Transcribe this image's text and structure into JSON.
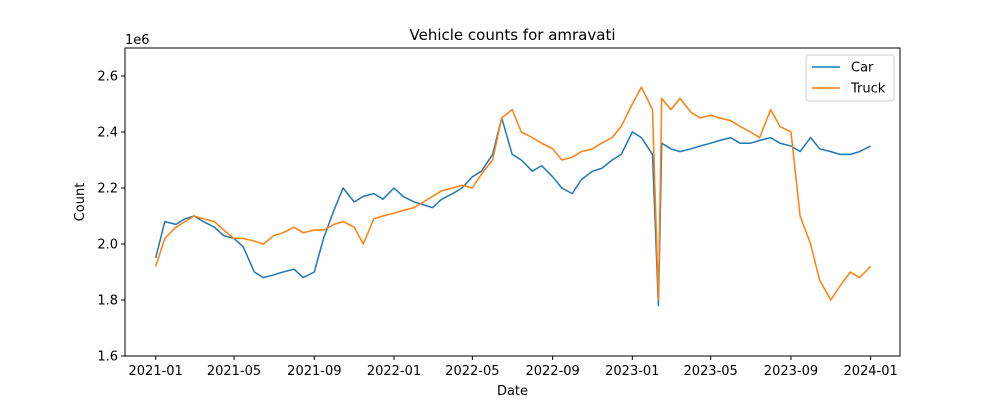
{
  "chart_data": {
    "type": "line",
    "title": "Vehicle counts for amravati",
    "xlabel": "Date",
    "ylabel": "Count",
    "y_offset_label": "1e6",
    "y_scale": 1000000,
    "xlim": [
      "2020-11-15",
      "2024-02-15"
    ],
    "ylim": [
      1600000,
      2700000
    ],
    "x_ticks": [
      "2021-01",
      "2021-05",
      "2021-09",
      "2022-01",
      "2022-05",
      "2022-09",
      "2023-01",
      "2023-05",
      "2023-09",
      "2024-01"
    ],
    "y_ticks": [
      1.6,
      1.8,
      2.0,
      2.2,
      2.4,
      2.6
    ],
    "grid": false,
    "legend_position": "top-right",
    "series": [
      {
        "name": "Car",
        "color": "#1f77b4",
        "x": [
          "2021-01-01",
          "2021-01-15",
          "2021-02-01",
          "2021-02-15",
          "2021-03-01",
          "2021-03-15",
          "2021-04-01",
          "2021-04-15",
          "2021-05-01",
          "2021-05-15",
          "2021-06-01",
          "2021-06-15",
          "2021-07-01",
          "2021-07-15",
          "2021-08-01",
          "2021-08-15",
          "2021-09-01",
          "2021-09-15",
          "2021-10-01",
          "2021-10-15",
          "2021-11-01",
          "2021-11-15",
          "2021-12-01",
          "2021-12-15",
          "2022-01-01",
          "2022-01-15",
          "2022-02-01",
          "2022-02-15",
          "2022-03-01",
          "2022-03-15",
          "2022-04-01",
          "2022-04-15",
          "2022-05-01",
          "2022-05-15",
          "2022-06-01",
          "2022-06-15",
          "2022-07-01",
          "2022-07-15",
          "2022-08-01",
          "2022-08-15",
          "2022-09-01",
          "2022-09-15",
          "2022-10-01",
          "2022-10-15",
          "2022-11-01",
          "2022-11-15",
          "2022-12-01",
          "2022-12-15",
          "2023-01-01",
          "2023-01-15",
          "2023-02-01",
          "2023-02-10",
          "2023-02-15",
          "2023-03-01",
          "2023-03-15",
          "2023-04-01",
          "2023-04-15",
          "2023-05-01",
          "2023-05-15",
          "2023-06-01",
          "2023-06-15",
          "2023-07-01",
          "2023-07-15",
          "2023-08-01",
          "2023-08-15",
          "2023-09-01",
          "2023-09-15",
          "2023-10-01",
          "2023-10-15",
          "2023-11-01",
          "2023-11-15",
          "2023-12-01",
          "2023-12-15",
          "2024-01-01"
        ],
        "values": [
          1950000,
          2080000,
          2070000,
          2090000,
          2100000,
          2080000,
          2060000,
          2030000,
          2020000,
          1990000,
          1900000,
          1880000,
          1890000,
          1900000,
          1910000,
          1880000,
          1900000,
          2020000,
          2120000,
          2200000,
          2150000,
          2170000,
          2180000,
          2160000,
          2200000,
          2170000,
          2150000,
          2140000,
          2130000,
          2160000,
          2180000,
          2200000,
          2240000,
          2260000,
          2320000,
          2450000,
          2320000,
          2300000,
          2260000,
          2280000,
          2240000,
          2200000,
          2180000,
          2230000,
          2260000,
          2270000,
          2300000,
          2320000,
          2400000,
          2380000,
          2320000,
          1780000,
          2360000,
          2340000,
          2330000,
          2340000,
          2350000,
          2360000,
          2370000,
          2380000,
          2360000,
          2360000,
          2370000,
          2380000,
          2360000,
          2350000,
          2330000,
          2380000,
          2340000,
          2330000,
          2320000,
          2320000,
          2330000,
          2350000
        ]
      },
      {
        "name": "Truck",
        "color": "#ff7f0e",
        "x": [
          "2021-01-01",
          "2021-01-15",
          "2021-02-01",
          "2021-02-15",
          "2021-03-01",
          "2021-03-15",
          "2021-04-01",
          "2021-04-15",
          "2021-05-01",
          "2021-05-15",
          "2021-06-01",
          "2021-06-15",
          "2021-07-01",
          "2021-07-15",
          "2021-08-01",
          "2021-08-15",
          "2021-09-01",
          "2021-09-15",
          "2021-10-01",
          "2021-10-15",
          "2021-11-01",
          "2021-11-15",
          "2021-12-01",
          "2021-12-15",
          "2022-01-01",
          "2022-01-15",
          "2022-02-01",
          "2022-02-15",
          "2022-03-01",
          "2022-03-15",
          "2022-04-01",
          "2022-04-15",
          "2022-05-01",
          "2022-05-15",
          "2022-06-01",
          "2022-06-15",
          "2022-07-01",
          "2022-07-15",
          "2022-08-01",
          "2022-08-15",
          "2022-09-01",
          "2022-09-15",
          "2022-10-01",
          "2022-10-15",
          "2022-11-01",
          "2022-11-15",
          "2022-12-01",
          "2022-12-15",
          "2023-01-01",
          "2023-01-15",
          "2023-02-01",
          "2023-02-10",
          "2023-02-15",
          "2023-03-01",
          "2023-03-15",
          "2023-04-01",
          "2023-04-15",
          "2023-05-01",
          "2023-05-15",
          "2023-06-01",
          "2023-06-15",
          "2023-07-01",
          "2023-07-15",
          "2023-08-01",
          "2023-08-15",
          "2023-09-01",
          "2023-09-15",
          "2023-10-01",
          "2023-10-15",
          "2023-11-01",
          "2023-11-15",
          "2023-12-01",
          "2023-12-15",
          "2024-01-01"
        ],
        "values": [
          1920000,
          2020000,
          2060000,
          2080000,
          2100000,
          2090000,
          2080000,
          2050000,
          2020000,
          2020000,
          2010000,
          2000000,
          2030000,
          2040000,
          2060000,
          2040000,
          2050000,
          2050000,
          2070000,
          2080000,
          2060000,
          2000000,
          2090000,
          2100000,
          2110000,
          2120000,
          2130000,
          2150000,
          2170000,
          2190000,
          2200000,
          2210000,
          2200000,
          2250000,
          2300000,
          2450000,
          2480000,
          2400000,
          2380000,
          2360000,
          2340000,
          2300000,
          2310000,
          2330000,
          2340000,
          2360000,
          2380000,
          2420000,
          2500000,
          2560000,
          2480000,
          1800000,
          2520000,
          2480000,
          2520000,
          2470000,
          2450000,
          2460000,
          2450000,
          2440000,
          2420000,
          2400000,
          2380000,
          2480000,
          2420000,
          2400000,
          2100000,
          2000000,
          1870000,
          1800000,
          1850000,
          1900000,
          1880000,
          1920000
        ]
      }
    ]
  }
}
